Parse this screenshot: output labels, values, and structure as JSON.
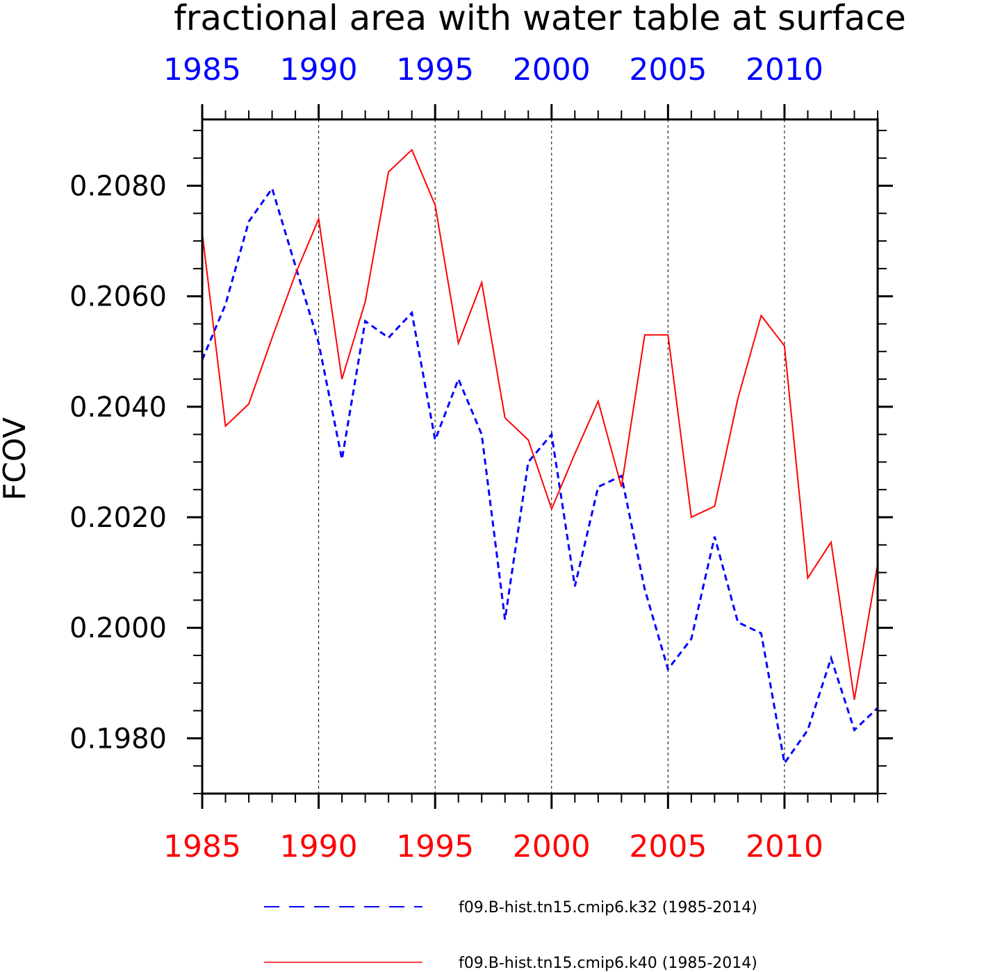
{
  "chart_data": {
    "type": "line",
    "title": "fractional area with water table at surface",
    "ylabel": "FCOV",
    "xlabel": "",
    "ylim": [
      0.197,
      0.2092
    ],
    "xlim": [
      1985,
      2014
    ],
    "yticks": [
      "0.1980",
      "0.2000",
      "0.2020",
      "0.2040",
      "0.2060",
      "0.2080"
    ],
    "ytick_values": [
      0.198,
      0.2,
      0.202,
      0.204,
      0.206,
      0.208
    ],
    "xticks": [
      "1985",
      "1990",
      "1995",
      "2000",
      "2005",
      "2010"
    ],
    "xtick_values": [
      1985,
      1990,
      1995,
      2000,
      2005,
      2010
    ],
    "top_axis_color": "#0000ff",
    "bottom_axis_color": "#ff0000",
    "grid": "vertical dashed at major x ticks",
    "legend_position": "bottom",
    "x": [
      1985,
      1986,
      1987,
      1988,
      1989,
      1990,
      1991,
      1992,
      1993,
      1994,
      1995,
      1996,
      1997,
      1998,
      1999,
      2000,
      2001,
      2002,
      2003,
      2004,
      2005,
      2006,
      2007,
      2008,
      2009,
      2010,
      2011,
      2012,
      2013,
      2014
    ],
    "series": [
      {
        "name": "f09.B-hist.tn15.cmip6.k32 (1985-2014)",
        "color": "#0000ff",
        "style": "dashed",
        "values": [
          0.20485,
          0.20585,
          0.20735,
          0.20795,
          0.20655,
          0.20515,
          0.20305,
          0.20555,
          0.20525,
          0.2057,
          0.2034,
          0.2045,
          0.2035,
          0.20015,
          0.203,
          0.2035,
          0.20075,
          0.20255,
          0.20275,
          0.2007,
          0.19925,
          0.1998,
          0.20165,
          0.2001,
          0.1999,
          0.19755,
          0.19815,
          0.19945,
          0.19815,
          0.19855
        ]
      },
      {
        "name": "f09.B-hist.tn15.cmip6.k40 (1985-2014)",
        "color": "#ff0000",
        "style": "solid",
        "values": [
          0.20715,
          0.20365,
          0.20405,
          0.20525,
          0.2064,
          0.2074,
          0.2045,
          0.2059,
          0.20825,
          0.20865,
          0.20765,
          0.20515,
          0.20625,
          0.2038,
          0.2034,
          0.20215,
          0.20315,
          0.2041,
          0.20255,
          0.2053,
          0.2053,
          0.202,
          0.2022,
          0.20415,
          0.20565,
          0.2051,
          0.2009,
          0.20155,
          0.1987,
          0.20115
        ]
      }
    ]
  }
}
